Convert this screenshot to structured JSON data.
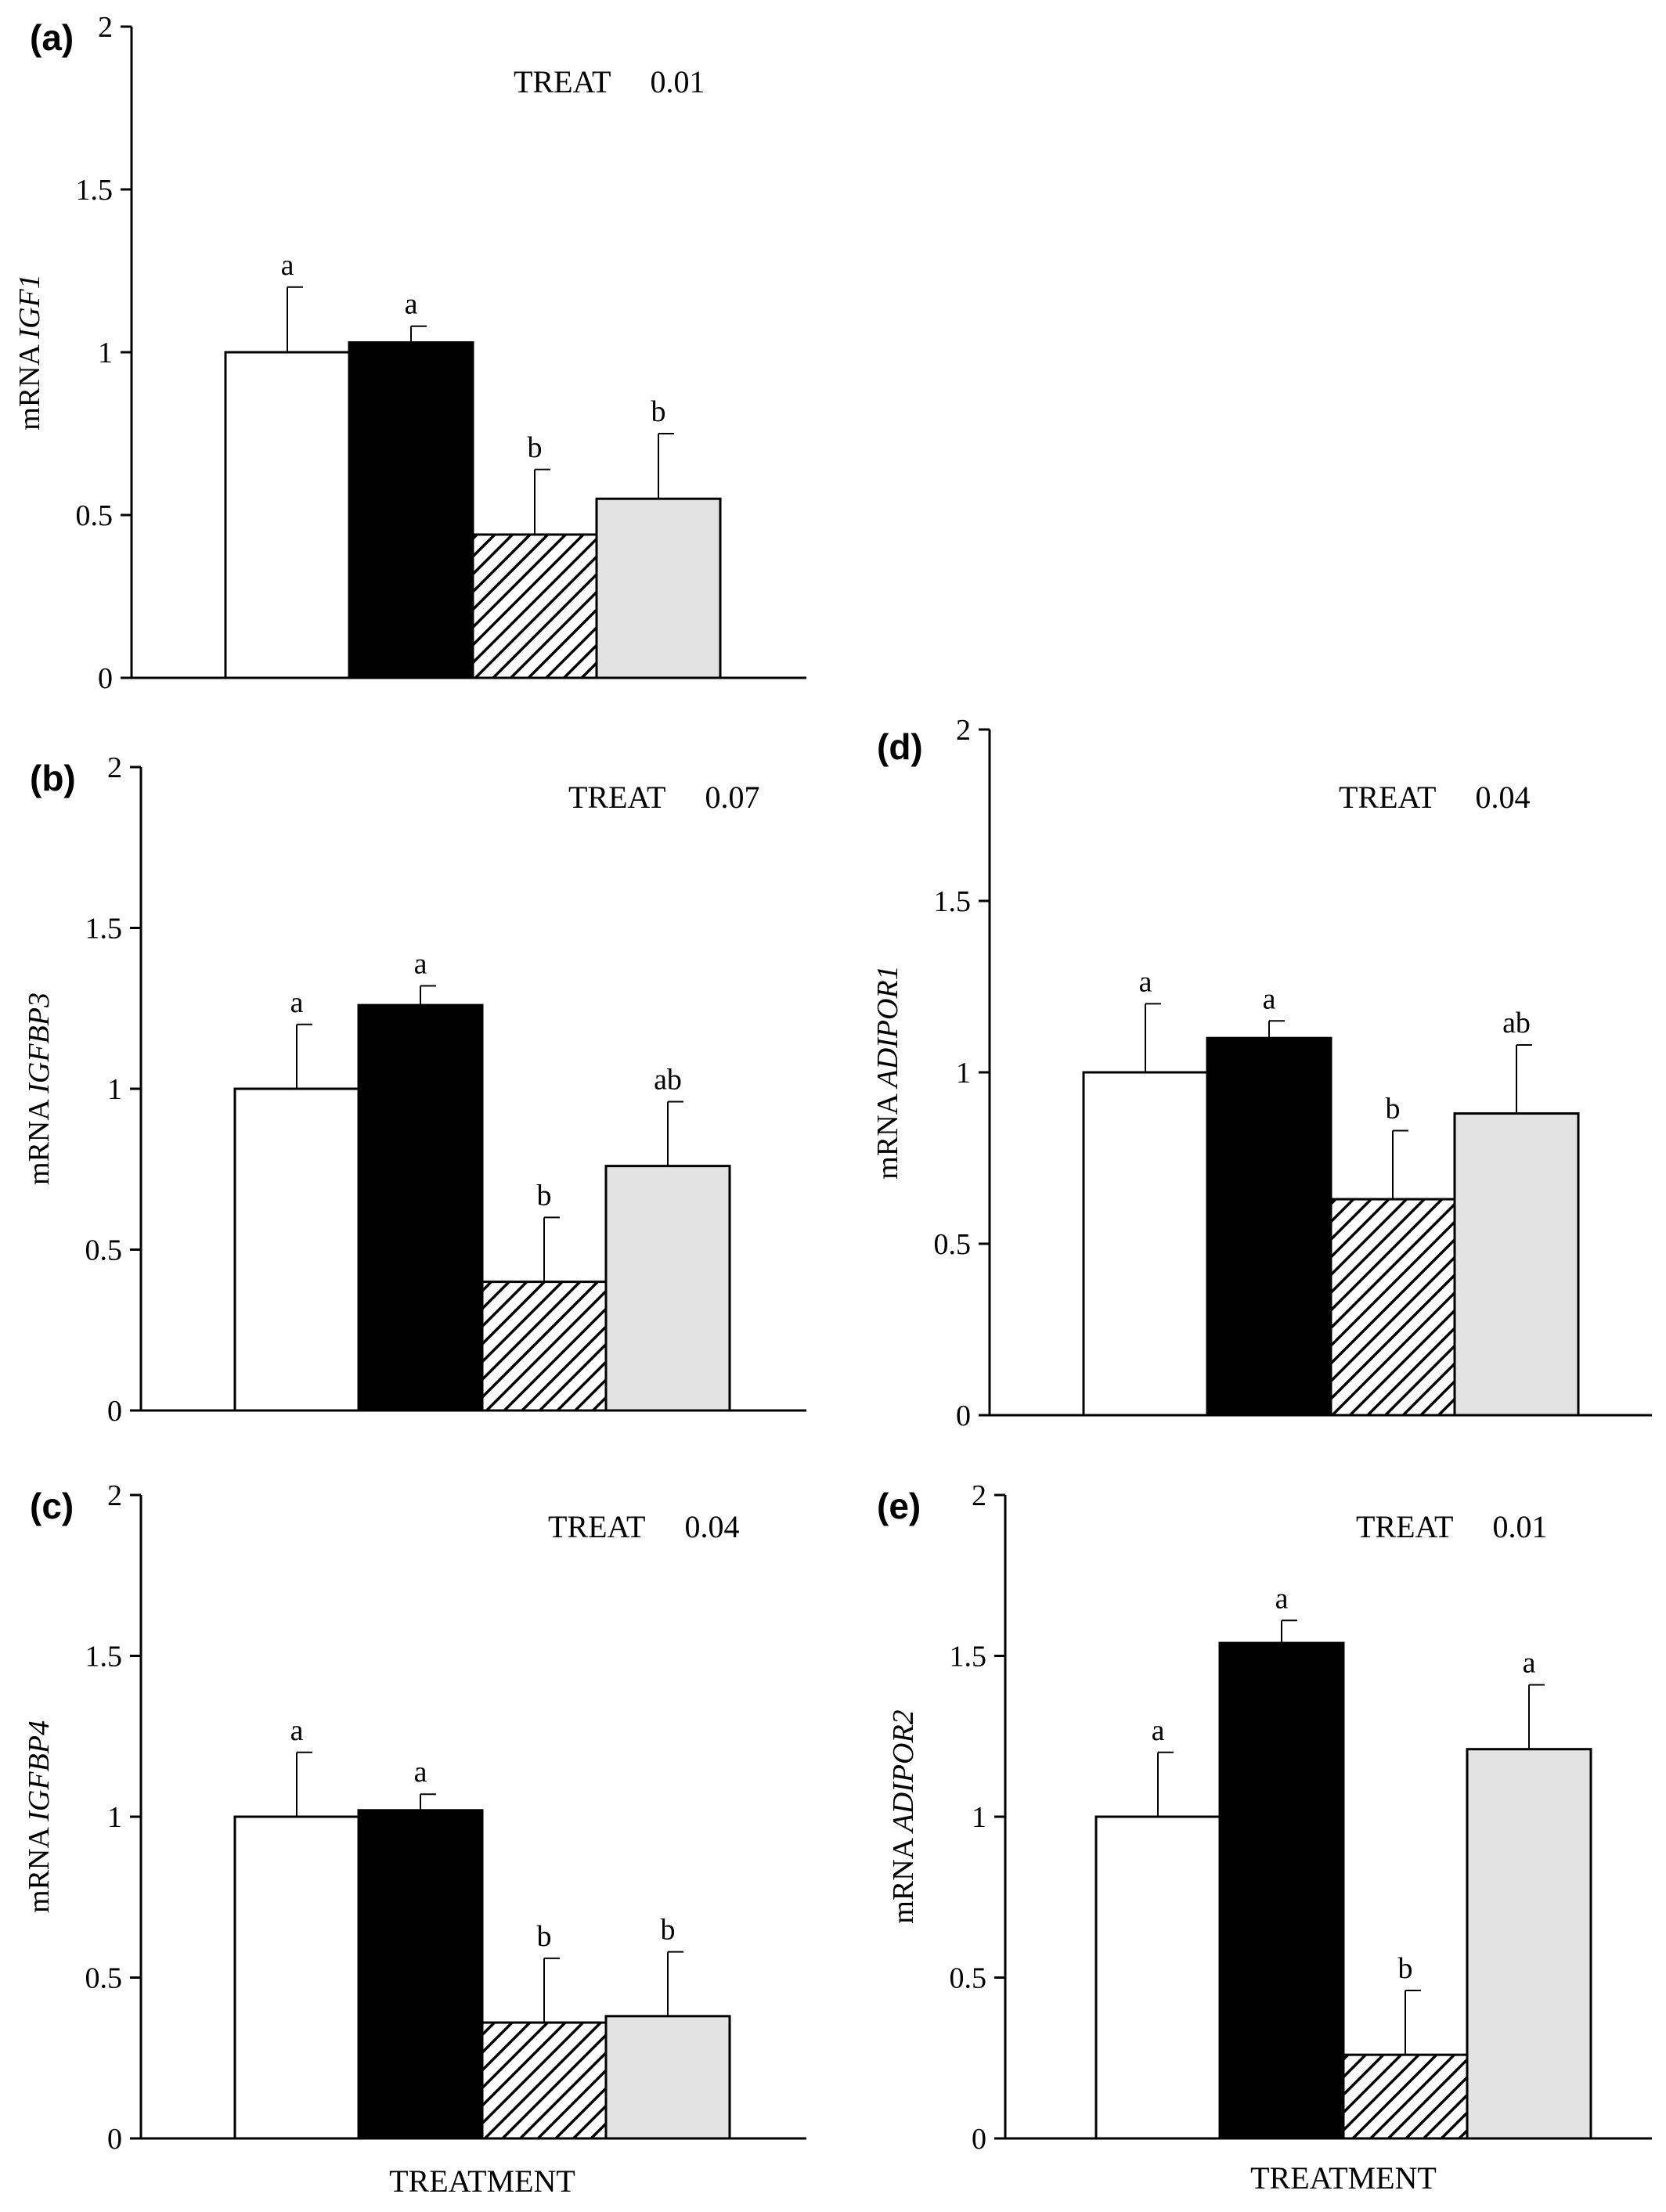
{
  "chart_data": [
    {
      "type": "bar",
      "panel": "(a)",
      "ylabel_prefix": "mRNA",
      "ylabel_gene": "IGF1",
      "annotation_label": "TREAT",
      "annotation_value": "0.01",
      "xlabel": "",
      "ylim": [
        0,
        2
      ],
      "yticks": [
        "0",
        "0.5",
        "1",
        "1.5",
        "2"
      ],
      "values": [
        1.0,
        1.03,
        0.44,
        0.55
      ],
      "errors": [
        0.2,
        0.05,
        0.2,
        0.2
      ],
      "letters": [
        "a",
        "a",
        "b",
        "b"
      ]
    },
    {
      "type": "bar",
      "panel": "(b)",
      "ylabel_prefix": "mRNA",
      "ylabel_gene": "IGFBP3",
      "annotation_label": "TREAT",
      "annotation_value": "0.07",
      "xlabel": "",
      "ylim": [
        0,
        2
      ],
      "yticks": [
        "0",
        "0.5",
        "1",
        "1.5",
        "2"
      ],
      "values": [
        1.0,
        1.26,
        0.4,
        0.76
      ],
      "errors": [
        0.2,
        0.06,
        0.2,
        0.2
      ],
      "letters": [
        "a",
        "a",
        "b",
        "ab"
      ]
    },
    {
      "type": "bar",
      "panel": "(c)",
      "ylabel_prefix": "mRNA",
      "ylabel_gene": "IGFBP4",
      "annotation_label": "TREAT",
      "annotation_value": "0.04",
      "xlabel": "TREATMENT",
      "ylim": [
        0,
        2
      ],
      "yticks": [
        "0",
        "0.5",
        "1",
        "1.5",
        "2"
      ],
      "values": [
        1.0,
        1.02,
        0.36,
        0.38
      ],
      "errors": [
        0.2,
        0.05,
        0.2,
        0.2
      ],
      "letters": [
        "a",
        "a",
        "b",
        "b"
      ]
    },
    {
      "type": "bar",
      "panel": "(d)",
      "ylabel_prefix": "mRNA",
      "ylabel_gene": "ADIPOR1",
      "annotation_label": "TREAT",
      "annotation_value": "0.04",
      "xlabel": "",
      "ylim": [
        0,
        2
      ],
      "yticks": [
        "0",
        "0.5",
        "1",
        "1.5",
        "2"
      ],
      "values": [
        1.0,
        1.1,
        0.63,
        0.88
      ],
      "errors": [
        0.2,
        0.05,
        0.2,
        0.2
      ],
      "letters": [
        "a",
        "a",
        "b",
        "ab"
      ]
    },
    {
      "type": "bar",
      "panel": "(e)",
      "ylabel_prefix": "mRNA",
      "ylabel_gene": "ADIPOR2",
      "annotation_label": "TREAT",
      "annotation_value": "0.01",
      "xlabel": "TREATMENT",
      "ylim": [
        0,
        2
      ],
      "yticks": [
        "0",
        "0.5",
        "1",
        "1.5",
        "2"
      ],
      "values": [
        1.0,
        1.54,
        0.26,
        1.21
      ],
      "errors": [
        0.2,
        0.07,
        0.2,
        0.2
      ],
      "letters": [
        "a",
        "a",
        "b",
        "a"
      ]
    }
  ],
  "bar_styles": [
    {
      "fill": "#ffffff",
      "pattern": "none"
    },
    {
      "fill": "#000000",
      "pattern": "none"
    },
    {
      "fill": "#ffffff",
      "pattern": "diagonal-hatch"
    },
    {
      "fill": "#e3e3e3",
      "pattern": "none"
    }
  ]
}
